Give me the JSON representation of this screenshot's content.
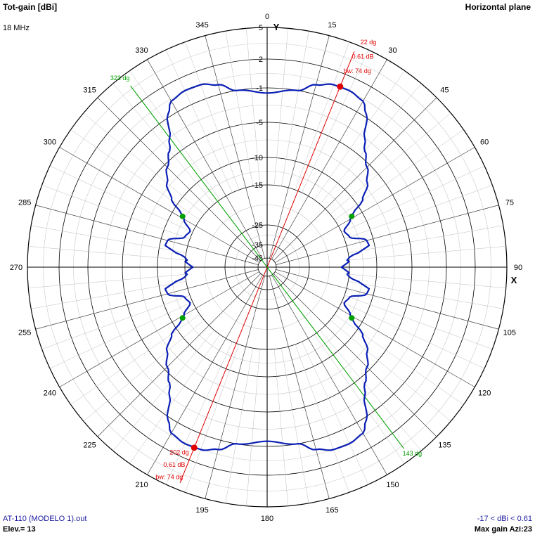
{
  "header": {
    "title_left": "Tot-gain [dBi]",
    "title_right": "Horizontal plane",
    "frequency": "18 MHz"
  },
  "footer": {
    "file": "AT-110 (MODELO 1).out",
    "elevation": "Elev.= 13",
    "range": "-17 < dBi < 0.61",
    "max_gain": "Max gain Azi:23"
  },
  "colors": {
    "pattern": "#0a1fb5",
    "main_lobe": "#e00000",
    "beamwidth": "#00a000",
    "grid": "#000000"
  },
  "chart_data": {
    "type": "polar",
    "plane": "Horizontal plane",
    "axis_labels": {
      "y": "Y",
      "x": "X"
    },
    "radial_scale_labels": [
      "5",
      "2",
      "-1",
      "-5",
      "-10",
      "-15",
      "-25",
      "-35",
      "-45"
    ],
    "radial_scale_dbi": [
      5,
      2,
      -1,
      -5,
      -10,
      -15,
      -25,
      -35,
      -45
    ],
    "angle_labels": [
      "0",
      "15",
      "30",
      "45",
      "60",
      "75",
      "90",
      "105",
      "120",
      "135",
      "150",
      "165",
      "180",
      "195",
      "210",
      "225",
      "240",
      "255",
      "270",
      "285",
      "300",
      "315",
      "330",
      "345"
    ],
    "pattern": {
      "name": "Tot-gain",
      "azimuth_deg": [
        0,
        10,
        15,
        20,
        25,
        30,
        33,
        37,
        40,
        45,
        50,
        55,
        58,
        60,
        65,
        70,
        75,
        78,
        80,
        83,
        85,
        86,
        88,
        90
      ],
      "gain_dbi": [
        -1.6,
        -1.0,
        0.0,
        0.55,
        0.61,
        0.3,
        -0.7,
        -3.0,
        -4.2,
        -5.5,
        -7.0,
        -9.0,
        -11.5,
        -12.5,
        -14.5,
        -14.0,
        -11.2,
        -11.0,
        -12.5,
        -14.8,
        -15.5,
        -15.0,
        -16.0,
        -17.0
      ],
      "symmetry": "mirrored about X and Y axes"
    },
    "main_lobe": {
      "direction_label": "22 dg",
      "gain_label": "0.61 dB",
      "beamwidth_label": "bw: 74 dg",
      "back_direction_label": "202 dg",
      "back_gain_label": "0.61 dB",
      "back_beamwidth_label": "bw: 74 dg",
      "azimuth_deg": 22,
      "gain_dbi": 0.61,
      "beamwidth_deg": 74
    },
    "half_power_lines": [
      {
        "label": "323 dg",
        "azimuth_deg": 323
      },
      {
        "label": "143 dg",
        "azimuth_deg": 143
      }
    ],
    "half_power_points_deg": [
      59,
      301,
      121,
      239
    ],
    "max_markers_deg": [
      22,
      202
    ]
  }
}
